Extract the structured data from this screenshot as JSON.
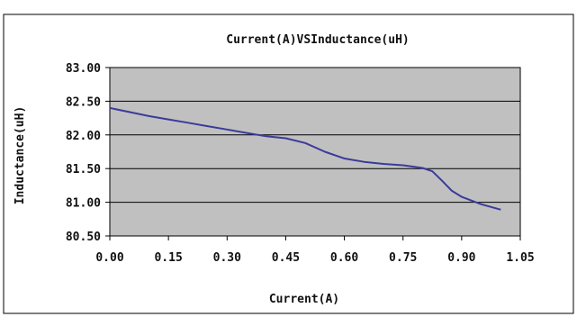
{
  "chart_data": {
    "type": "line",
    "title": "Current(A)VSInductance(uH)",
    "xlabel": "Current(A)",
    "ylabel": "Inductance(uH)",
    "xlim": [
      0,
      1.05
    ],
    "ylim": [
      80.5,
      83.0
    ],
    "x_ticks": [
      "0.00",
      "0.15",
      "0.30",
      "0.45",
      "0.60",
      "0.75",
      "0.90",
      "1.05"
    ],
    "y_ticks": [
      "83.00",
      "82.50",
      "82.00",
      "81.50",
      "81.00",
      "80.50"
    ],
    "grid": true,
    "legend": "none",
    "series": [
      {
        "x": [
          0.0,
          0.05,
          0.1,
          0.15,
          0.2,
          0.25,
          0.3,
          0.35,
          0.4,
          0.45,
          0.5,
          0.55,
          0.6,
          0.65,
          0.7,
          0.75,
          0.8,
          0.825,
          0.85,
          0.875,
          0.9,
          0.95,
          1.0
        ],
        "y": [
          82.4,
          82.34,
          82.28,
          82.23,
          82.18,
          82.13,
          82.08,
          82.03,
          81.98,
          81.95,
          81.88,
          81.75,
          81.65,
          81.6,
          81.57,
          81.55,
          81.51,
          81.46,
          81.32,
          81.17,
          81.08,
          80.97,
          80.89
        ]
      }
    ],
    "colors": {
      "plot_bg": "#c0c0c0",
      "line": "#3b3b9b",
      "grid": "#000000",
      "frame": "#000000"
    }
  }
}
